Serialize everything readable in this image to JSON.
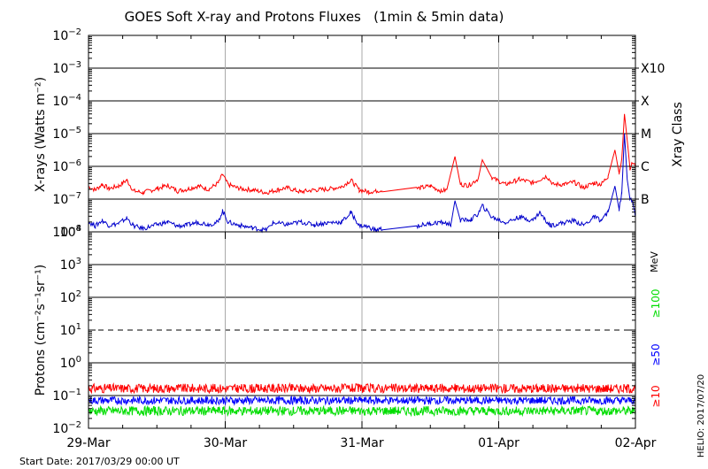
{
  "title": "GOES Soft X-ray and Protons Fluxes   (1min & 5min data)",
  "start_date": "Start Date: 2017/03/29 00:00 UT",
  "credit": "HELIO: 2017/07/20",
  "colors": {
    "xray_long": "#ff0000",
    "xray_short": "#0000cc",
    "proton_10": "#ff0000",
    "proton_50": "#0000ff",
    "proton_100": "#00dd00",
    "grid_day": "#aaaaaa",
    "frame": "#000000"
  },
  "chart_data": [
    {
      "type": "line",
      "name": "xray-panel",
      "ylabel": "X-rays (Watts m⁻²)",
      "yscale": "log",
      "ylim_exp": [
        -8,
        -2
      ],
      "ytick_exponents": [
        -8,
        -7,
        -6,
        -5,
        -4,
        -3,
        -2
      ],
      "class_axis_label": "Xray Class",
      "class_labels": [
        {
          "label": "B",
          "exp": -7
        },
        {
          "label": "C",
          "exp": -6
        },
        {
          "label": "M",
          "exp": -5
        },
        {
          "label": "X",
          "exp": -4
        },
        {
          "label": "X10",
          "exp": -3
        }
      ],
      "x_days_range": [
        0,
        4
      ],
      "series": [
        {
          "color_key": "xray_long",
          "points": [
            [
              0.0,
              -6.62
            ],
            [
              0.05,
              -6.72
            ],
            [
              0.1,
              -6.55
            ],
            [
              0.15,
              -6.68
            ],
            [
              0.22,
              -6.6
            ],
            [
              0.28,
              -6.42
            ],
            [
              0.33,
              -6.75
            ],
            [
              0.4,
              -6.8
            ],
            [
              0.5,
              -6.68
            ],
            [
              0.58,
              -6.58
            ],
            [
              0.65,
              -6.75
            ],
            [
              0.72,
              -6.7
            ],
            [
              0.8,
              -6.6
            ],
            [
              0.88,
              -6.7
            ],
            [
              0.95,
              -6.5
            ],
            [
              0.98,
              -6.25
            ],
            [
              1.02,
              -6.55
            ],
            [
              1.1,
              -6.68
            ],
            [
              1.2,
              -6.72
            ],
            [
              1.3,
              -6.8
            ],
            [
              1.38,
              -6.72
            ],
            [
              1.45,
              -6.65
            ],
            [
              1.55,
              -6.78
            ],
            [
              1.65,
              -6.72
            ],
            [
              1.75,
              -6.7
            ],
            [
              1.85,
              -6.62
            ],
            [
              1.92,
              -6.42
            ],
            [
              1.98,
              -6.72
            ],
            [
              2.05,
              -6.78
            ],
            [
              2.1,
              -6.75
            ],
            [
              2.15,
              -6.72
            ],
            [
              2.4,
              -6.68
            ],
            [
              2.5,
              -6.6
            ],
            [
              2.58,
              -6.75
            ],
            [
              2.62,
              -6.72
            ],
            [
              2.68,
              -5.7
            ],
            [
              2.72,
              -6.55
            ],
            [
              2.78,
              -6.58
            ],
            [
              2.85,
              -6.38
            ],
            [
              2.88,
              -5.8
            ],
            [
              2.95,
              -6.35
            ],
            [
              3.05,
              -6.55
            ],
            [
              3.15,
              -6.4
            ],
            [
              3.25,
              -6.5
            ],
            [
              3.35,
              -6.3
            ],
            [
              3.4,
              -6.55
            ],
            [
              3.48,
              -6.55
            ],
            [
              3.55,
              -6.48
            ],
            [
              3.62,
              -6.65
            ],
            [
              3.7,
              -6.5
            ],
            [
              3.75,
              -6.55
            ],
            [
              3.8,
              -6.3
            ],
            [
              3.85,
              -5.5
            ],
            [
              3.88,
              -6.2
            ],
            [
              3.9,
              -5.8
            ],
            [
              3.92,
              -4.4
            ],
            [
              3.94,
              -5.2
            ],
            [
              3.96,
              -6.05
            ],
            [
              3.98,
              -5.9
            ],
            [
              4.0,
              -6.0
            ]
          ]
        },
        {
          "color_key": "xray_short",
          "points": [
            [
              0.0,
              -7.7
            ],
            [
              0.05,
              -7.82
            ],
            [
              0.1,
              -7.65
            ],
            [
              0.15,
              -7.8
            ],
            [
              0.22,
              -7.75
            ],
            [
              0.28,
              -7.58
            ],
            [
              0.33,
              -7.82
            ],
            [
              0.4,
              -7.9
            ],
            [
              0.5,
              -7.78
            ],
            [
              0.58,
              -7.7
            ],
            [
              0.65,
              -7.82
            ],
            [
              0.72,
              -7.8
            ],
            [
              0.8,
              -7.7
            ],
            [
              0.88,
              -7.78
            ],
            [
              0.95,
              -7.7
            ],
            [
              0.98,
              -7.35
            ],
            [
              1.02,
              -7.7
            ],
            [
              1.1,
              -7.8
            ],
            [
              1.2,
              -7.88
            ],
            [
              1.3,
              -7.95
            ],
            [
              1.35,
              -7.72
            ],
            [
              1.45,
              -7.78
            ],
            [
              1.55,
              -7.7
            ],
            [
              1.65,
              -7.78
            ],
            [
              1.75,
              -7.72
            ],
            [
              1.85,
              -7.7
            ],
            [
              1.92,
              -7.42
            ],
            [
              1.98,
              -7.8
            ],
            [
              2.05,
              -7.85
            ],
            [
              2.1,
              -7.95
            ],
            [
              2.15,
              -7.9
            ],
            [
              2.4,
              -7.82
            ],
            [
              2.5,
              -7.75
            ],
            [
              2.58,
              -7.7
            ],
            [
              2.65,
              -7.78
            ],
            [
              2.68,
              -7.05
            ],
            [
              2.72,
              -7.65
            ],
            [
              2.8,
              -7.62
            ],
            [
              2.85,
              -7.45
            ],
            [
              2.88,
              -7.2
            ],
            [
              2.95,
              -7.55
            ],
            [
              3.05,
              -7.72
            ],
            [
              3.15,
              -7.55
            ],
            [
              3.25,
              -7.65
            ],
            [
              3.3,
              -7.4
            ],
            [
              3.35,
              -7.7
            ],
            [
              3.38,
              -7.8
            ],
            [
              3.48,
              -7.72
            ],
            [
              3.55,
              -7.65
            ],
            [
              3.62,
              -7.8
            ],
            [
              3.7,
              -7.55
            ],
            [
              3.75,
              -7.65
            ],
            [
              3.8,
              -7.4
            ],
            [
              3.85,
              -6.6
            ],
            [
              3.88,
              -7.3
            ],
            [
              3.9,
              -6.85
            ],
            [
              3.92,
              -5.0
            ],
            [
              3.94,
              -6.4
            ],
            [
              3.96,
              -7.0
            ],
            [
              3.98,
              -7.1
            ],
            [
              4.0,
              -7.5
            ]
          ]
        }
      ]
    },
    {
      "type": "line",
      "name": "proton-panel",
      "ylabel": "Protons (cm⁻²s⁻¹sr⁻¹)",
      "yscale": "log",
      "ylim_exp": [
        -2,
        4
      ],
      "ytick_exponents": [
        -2,
        -1,
        0,
        1,
        2,
        3,
        4
      ],
      "threshold_exp": 1,
      "unit_label": "MeV",
      "x_days_range": [
        0,
        4
      ],
      "series": [
        {
          "name": "≥10",
          "color_key": "proton_10",
          "mean_exp": -0.78,
          "spread": 0.14
        },
        {
          "name": "≥50",
          "color_key": "proton_50",
          "mean_exp": -1.15,
          "spread": 0.12
        },
        {
          "name": "≥100",
          "color_key": "proton_100",
          "mean_exp": -1.47,
          "spread": 0.14
        }
      ]
    }
  ],
  "x_tick_labels": [
    "29-Mar",
    "30-Mar",
    "31-Mar",
    "01-Apr",
    "02-Apr"
  ]
}
